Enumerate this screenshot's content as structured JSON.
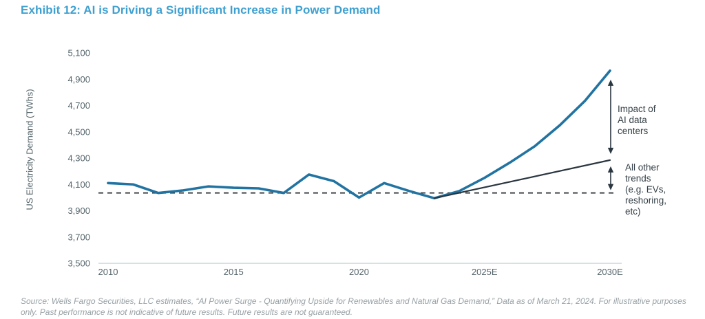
{
  "title": "Exhibit 12: AI is Driving a Significant Increase in Power Demand",
  "y_axis_label": "US Electricity Demand (TWhs)",
  "annotations": {
    "impact_ai": "Impact of\nAI data\ncenters",
    "all_other": "All other\ntrends\n(e.g. EVs,\nreshoring,\netc)"
  },
  "source": "Source: Wells Fargo Securities, LLC estimates, “AI Power Surge - Quantifying Upside for Renewables and Natural Gas Demand,” Data as of March 21, 2024. For illustrative purposes only. Past performance is not indicative of future results. Future results are not guaranteed.",
  "colors": {
    "title": "#3FA0D0",
    "actual_line": "#2173A2",
    "trend_line": "#2A3640",
    "dashed_line": "#41474C",
    "axis_line": "#C8D8D8",
    "tick_text": "#55656B",
    "annotation_text": "#333E44",
    "source_text": "#98A1A6"
  },
  "chart_data": {
    "type": "line",
    "title": "Exhibit 12: AI is Driving a Significant Increase in Power Demand",
    "xlabel": "",
    "ylabel": "US Electricity Demand (TWhs)",
    "ylim": [
      3500,
      5100
    ],
    "xlim": [
      2010,
      2030
    ],
    "y_tick_step": 200,
    "y_tick_labels": [
      "5,100",
      "4,900",
      "4,700",
      "4,500",
      "4,300",
      "4,100",
      "3,900",
      "3,700",
      "3,500"
    ],
    "x_ticks": [
      {
        "year": 2010,
        "label": "2010"
      },
      {
        "year": 2015,
        "label": "2015"
      },
      {
        "year": 2020,
        "label": "2020"
      },
      {
        "year": 2025,
        "label": "2025E"
      },
      {
        "year": 2030,
        "label": "2030E"
      }
    ],
    "grid": false,
    "legend_position": "none",
    "baseline": {
      "value": 4035,
      "style": "dashed",
      "meaning": "current demand level"
    },
    "series": [
      {
        "name": "US electricity demand incl. AI data centers",
        "color": "#2173A2",
        "width": 3.6,
        "x": [
          2010,
          2011,
          2012,
          2013,
          2014,
          2015,
          2016,
          2017,
          2018,
          2019,
          2020,
          2021,
          2022,
          2023,
          2024,
          2025,
          2026,
          2027,
          2028,
          2029,
          2030
        ],
        "values": [
          4110,
          4100,
          4035,
          4055,
          4085,
          4075,
          4070,
          4035,
          4175,
          4125,
          4000,
          4110,
          4050,
          3995,
          4050,
          4150,
          4265,
          4390,
          4550,
          4735,
          4965
        ]
      },
      {
        "name": "All other trends (e.g. EVs, reshoring, etc)",
        "color": "#2A3640",
        "width": 2.2,
        "x": [
          2023,
          2030
        ],
        "values": [
          3995,
          4285
        ]
      }
    ],
    "annotations": [
      {
        "label": "Impact of AI data centers",
        "between": [
          "US electricity demand incl. AI data centers",
          "All other trends (e.g. EVs, reshoring, etc)"
        ],
        "at_x": 2030
      },
      {
        "label": "All other trends (e.g. EVs, reshoring, etc)",
        "between": [
          "All other trends (e.g. EVs, reshoring, etc)",
          "baseline"
        ],
        "at_x": 2030
      }
    ]
  }
}
